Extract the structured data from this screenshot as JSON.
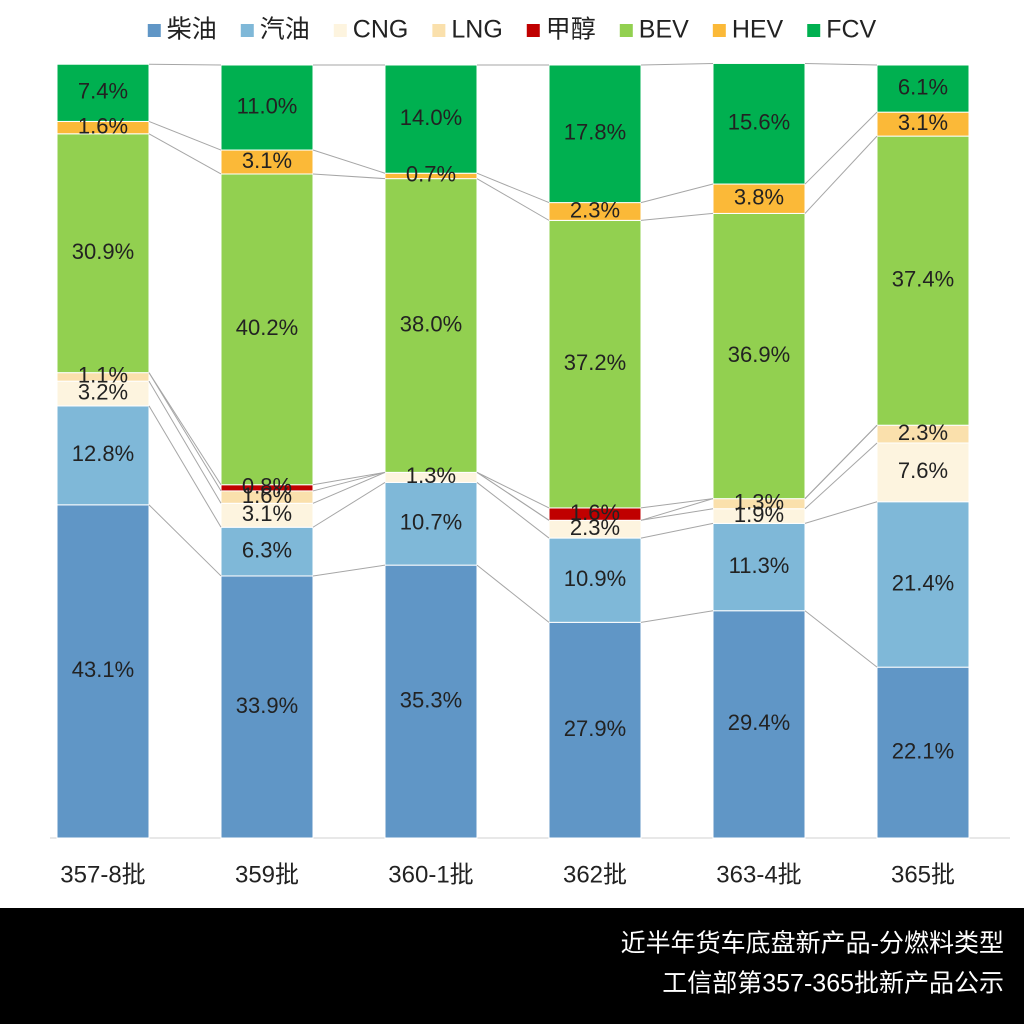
{
  "chart_data": {
    "type": "stacked_bar_100",
    "categories": [
      "357-8批",
      "359批",
      "360-1批",
      "362批",
      "363-4批",
      "365批"
    ],
    "series": [
      {
        "name": "柴油",
        "color": "#6096c6",
        "values": [
          43.1,
          33.9,
          35.3,
          27.9,
          29.4,
          22.1
        ],
        "value_labels": [
          "43.1%",
          "33.9%",
          "35.3%",
          "27.9%",
          "29.4%",
          "22.1%"
        ]
      },
      {
        "name": "汽油",
        "color": "#7fb8d8",
        "values": [
          12.8,
          6.3,
          10.7,
          10.9,
          11.3,
          21.4
        ],
        "value_labels": [
          "12.8%",
          "6.3%",
          "10.7%",
          "10.9%",
          "11.3%",
          "21.4%"
        ]
      },
      {
        "name": "CNG",
        "color": "#fdf4df",
        "values": [
          3.2,
          3.1,
          1.3,
          2.3,
          1.9,
          7.6
        ],
        "value_labels": [
          "3.2%",
          "3.1%",
          "1.3%",
          "2.3%",
          "1.9%",
          "7.6%"
        ]
      },
      {
        "name": "LNG",
        "color": "#fae0ac",
        "values": [
          1.1,
          1.6,
          null,
          null,
          1.3,
          2.3
        ],
        "value_labels": [
          "1.1%",
          "1.6%",
          null,
          null,
          "1.3%",
          "2.3%"
        ]
      },
      {
        "name": "甲醇",
        "color": "#c00000",
        "values": [
          null,
          0.8,
          null,
          1.6,
          null,
          null
        ],
        "value_labels": [
          null,
          "0.8%",
          null,
          "1.6%",
          null,
          null
        ]
      },
      {
        "name": "BEV",
        "color": "#92d050",
        "values": [
          30.9,
          40.2,
          38.0,
          37.2,
          36.9,
          37.4
        ],
        "value_labels": [
          "30.9%",
          "40.2%",
          "38.0%",
          "37.2%",
          "36.9%",
          "37.4%"
        ]
      },
      {
        "name": "HEV",
        "color": "#fbb938",
        "values": [
          1.6,
          3.1,
          0.7,
          2.3,
          3.8,
          3.1
        ],
        "value_labels": [
          "1.6%",
          "3.1%",
          "0.7%",
          "2.3%",
          "3.8%",
          "3.1%"
        ]
      },
      {
        "name": "FCV",
        "color": "#00b050",
        "values": [
          7.4,
          11.0,
          14.0,
          17.8,
          15.6,
          6.1
        ],
        "value_labels": [
          "7.4%",
          "11.0%",
          "14.0%",
          "17.8%",
          "15.6%",
          "6.1%"
        ]
      }
    ],
    "ylim": [
      0,
      100
    ],
    "legend": "top"
  },
  "footer": {
    "lines": [
      "近半年货车底盘新产品-分燃料类型",
      "工信部第357-365批新产品公示"
    ]
  }
}
